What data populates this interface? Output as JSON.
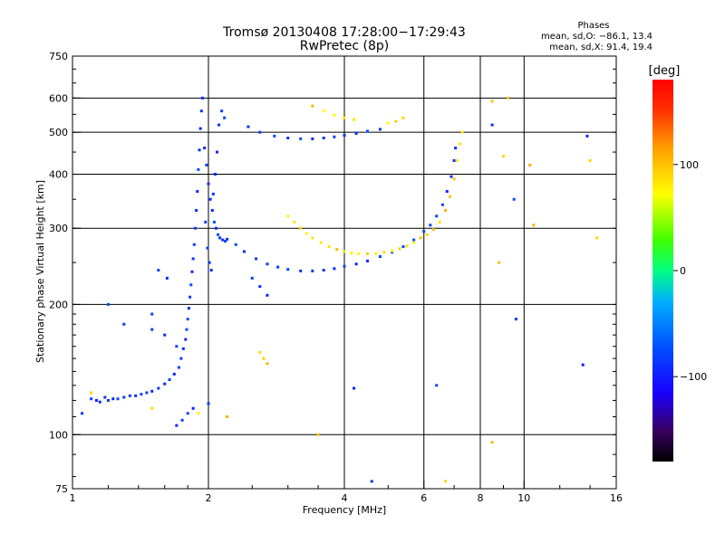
{
  "chart_data": {
    "type": "scatter",
    "title": "Tromsø 20130408 17:28:00−17:29:43",
    "subtitle": "RwPretec (8p)",
    "xlabel": "Frequency [MHz]",
    "ylabel": "Stationary phase Virtual Height [km]",
    "x_scale": "log",
    "y_scale": "log",
    "xlim": [
      1,
      16
    ],
    "ylim": [
      75,
      750
    ],
    "x_ticks": [
      1,
      2,
      4,
      6,
      8,
      10,
      16
    ],
    "x_tick_labels": [
      "1",
      "2",
      "4",
      "6",
      "8",
      "10",
      "16"
    ],
    "y_ticks": [
      75,
      100,
      200,
      300,
      400,
      500,
      600,
      750
    ],
    "y_tick_labels": [
      "75",
      "100",
      "200",
      "300",
      "400",
      "500",
      "600",
      "750"
    ],
    "x_grid": [
      2,
      4,
      6,
      8,
      10
    ],
    "y_grid": [
      100,
      200,
      300,
      400,
      500,
      600
    ],
    "stats": {
      "heading": "Phases",
      "line_o": "mean, sd,O: −86.1, 13.4",
      "line_x": "mean, sd,X:  91.4, 19.4"
    },
    "colorbar": {
      "label": "[deg]",
      "range": [
        -180,
        180
      ],
      "ticks": [
        100,
        0,
        -100
      ],
      "tick_labels": [
        "100",
        "0",
        "−100"
      ]
    },
    "series": [
      {
        "mode": "O",
        "phase_mean": -86.1,
        "phase_sd": 13.4,
        "points": [
          [
            1.05,
            112
          ],
          [
            1.1,
            121
          ],
          [
            1.13,
            120
          ],
          [
            1.15,
            119
          ],
          [
            1.18,
            122
          ],
          [
            1.2,
            120
          ],
          [
            1.23,
            121
          ],
          [
            1.26,
            121
          ],
          [
            1.3,
            122
          ],
          [
            1.34,
            123
          ],
          [
            1.38,
            123
          ],
          [
            1.42,
            124
          ],
          [
            1.46,
            125
          ],
          [
            1.5,
            126
          ],
          [
            1.55,
            128
          ],
          [
            1.6,
            131
          ],
          [
            1.64,
            134
          ],
          [
            1.68,
            138
          ],
          [
            1.72,
            143
          ],
          [
            1.74,
            150
          ],
          [
            1.76,
            158
          ],
          [
            1.78,
            166
          ],
          [
            1.79,
            175
          ],
          [
            1.8,
            185
          ],
          [
            1.81,
            196
          ],
          [
            1.82,
            208
          ],
          [
            1.83,
            222
          ],
          [
            1.84,
            238
          ],
          [
            1.85,
            255
          ],
          [
            1.86,
            275
          ],
          [
            1.87,
            300
          ],
          [
            1.88,
            330
          ],
          [
            1.89,
            365
          ],
          [
            1.9,
            410
          ],
          [
            1.91,
            455
          ],
          [
            1.92,
            510
          ],
          [
            1.93,
            560
          ],
          [
            1.94,
            600
          ],
          [
            1.96,
            460
          ],
          [
            1.98,
            420
          ],
          [
            2.0,
            380
          ],
          [
            2.02,
            350
          ],
          [
            2.04,
            330
          ],
          [
            2.06,
            310
          ],
          [
            2.08,
            300
          ],
          [
            2.1,
            290
          ],
          [
            2.12,
            285
          ],
          [
            2.15,
            282
          ],
          [
            2.18,
            280
          ],
          [
            2.2,
            283
          ],
          [
            1.97,
            310
          ],
          [
            1.99,
            270
          ],
          [
            2.01,
            250
          ],
          [
            2.03,
            240
          ],
          [
            2.05,
            360
          ],
          [
            2.07,
            400
          ],
          [
            2.09,
            450
          ],
          [
            2.11,
            520
          ],
          [
            2.14,
            560
          ],
          [
            2.17,
            540
          ],
          [
            2.3,
            275
          ],
          [
            2.4,
            265
          ],
          [
            2.55,
            255
          ],
          [
            2.7,
            248
          ],
          [
            2.85,
            244
          ],
          [
            3.0,
            241
          ],
          [
            3.2,
            239
          ],
          [
            3.4,
            239
          ],
          [
            3.6,
            240
          ],
          [
            3.8,
            242
          ],
          [
            4.0,
            245
          ],
          [
            4.25,
            248
          ],
          [
            4.5,
            252
          ],
          [
            4.8,
            258
          ],
          [
            5.1,
            264
          ],
          [
            5.4,
            272
          ],
          [
            5.7,
            282
          ],
          [
            6.0,
            295
          ],
          [
            6.2,
            305
          ],
          [
            6.4,
            320
          ],
          [
            6.6,
            340
          ],
          [
            6.75,
            365
          ],
          [
            6.9,
            395
          ],
          [
            7.0,
            430
          ],
          [
            7.05,
            460
          ],
          [
            2.45,
            515
          ],
          [
            2.6,
            500
          ],
          [
            2.8,
            490
          ],
          [
            3.0,
            485
          ],
          [
            3.2,
            483
          ],
          [
            3.4,
            483
          ],
          [
            3.6,
            485
          ],
          [
            3.8,
            488
          ],
          [
            4.0,
            492
          ],
          [
            4.25,
            497
          ],
          [
            4.5,
            503
          ],
          [
            4.8,
            508
          ],
          [
            1.2,
            200
          ],
          [
            1.3,
            180
          ],
          [
            1.5,
            175
          ],
          [
            1.6,
            170
          ],
          [
            1.7,
            160
          ],
          [
            2.5,
            230
          ],
          [
            2.6,
            220
          ],
          [
            2.7,
            210
          ],
          [
            1.62,
            230
          ],
          [
            1.55,
            240
          ],
          [
            1.5,
            190
          ],
          [
            9.6,
            185
          ],
          [
            9.5,
            350
          ],
          [
            8.5,
            520
          ],
          [
            6.4,
            130
          ],
          [
            4.2,
            128
          ],
          [
            13.5,
            145
          ],
          [
            13.8,
            490
          ],
          [
            1.85,
            115
          ],
          [
            2.0,
            118
          ],
          [
            1.8,
            112
          ],
          [
            1.75,
            108
          ],
          [
            1.7,
            105
          ],
          [
            4.6,
            78
          ]
        ]
      },
      {
        "mode": "X",
        "phase_mean": 91.4,
        "phase_sd": 19.4,
        "points": [
          [
            3.0,
            320
          ],
          [
            3.1,
            310
          ],
          [
            3.2,
            300
          ],
          [
            3.3,
            292
          ],
          [
            3.4,
            285
          ],
          [
            3.55,
            278
          ],
          [
            3.7,
            272
          ],
          [
            3.85,
            268
          ],
          [
            4.0,
            265
          ],
          [
            4.15,
            263
          ],
          [
            4.3,
            262
          ],
          [
            4.5,
            262
          ],
          [
            4.7,
            262
          ],
          [
            4.9,
            264
          ],
          [
            5.1,
            266
          ],
          [
            5.3,
            269
          ],
          [
            5.5,
            273
          ],
          [
            5.7,
            278
          ],
          [
            5.9,
            285
          ],
          [
            6.1,
            290
          ],
          [
            6.3,
            298
          ],
          [
            6.5,
            310
          ],
          [
            6.7,
            330
          ],
          [
            6.85,
            355
          ],
          [
            7.0,
            390
          ],
          [
            7.1,
            430
          ],
          [
            7.2,
            470
          ],
          [
            7.3,
            500
          ],
          [
            3.4,
            575
          ],
          [
            3.6,
            560
          ],
          [
            3.8,
            548
          ],
          [
            4.0,
            540
          ],
          [
            4.2,
            535
          ],
          [
            5.0,
            525
          ],
          [
            5.2,
            530
          ],
          [
            5.4,
            540
          ],
          [
            2.6,
            155
          ],
          [
            2.65,
            150
          ],
          [
            2.7,
            146
          ],
          [
            1.1,
            125
          ],
          [
            1.5,
            115
          ],
          [
            1.9,
            112
          ],
          [
            2.2,
            110
          ],
          [
            3.5,
            100
          ],
          [
            6.7,
            78
          ],
          [
            8.5,
            96
          ],
          [
            8.5,
            590
          ],
          [
            9.0,
            440
          ],
          [
            10.3,
            420
          ],
          [
            10.5,
            305
          ],
          [
            14.0,
            430
          ],
          [
            14.5,
            285
          ],
          [
            9.2,
            600
          ],
          [
            8.8,
            250
          ]
        ]
      }
    ]
  }
}
